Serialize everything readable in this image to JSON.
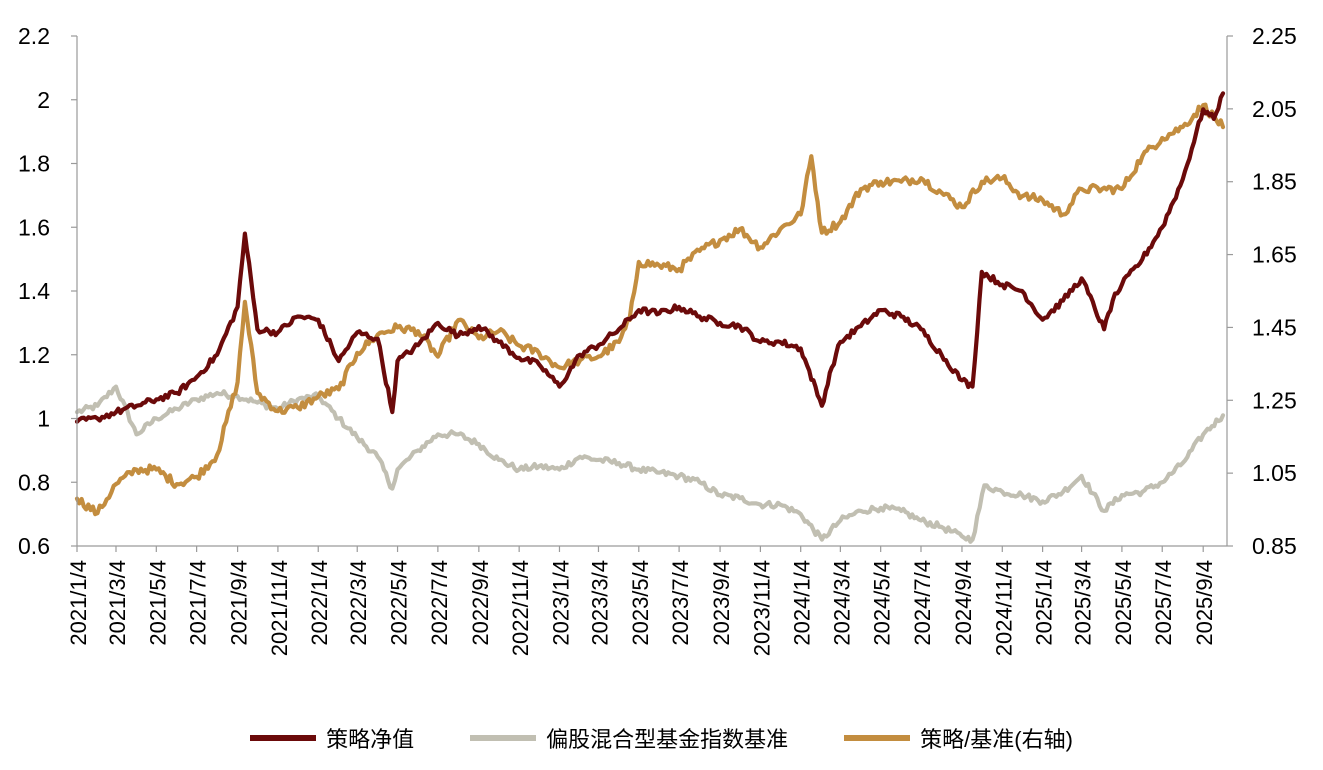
{
  "chart_data": {
    "type": "line",
    "title": "",
    "xlabel": "",
    "ylabel": "",
    "y_left": {
      "ticks": [
        "0.6",
        "0.8",
        "1",
        "1.2",
        "1.4",
        "1.6",
        "1.8",
        "2",
        "2.2"
      ],
      "lim": [
        0.6,
        2.2
      ]
    },
    "y_right": {
      "ticks": [
        "0.85",
        "1.05",
        "1.25",
        "1.45",
        "1.65",
        "1.85",
        "2.05",
        "2.25"
      ],
      "lim": [
        0.85,
        2.25
      ]
    },
    "x_ticks": [
      "2021/1/4",
      "2021/3/4",
      "2021/5/4",
      "2021/7/4",
      "2021/9/4",
      "2021/11/4",
      "2022/1/4",
      "2022/3/4",
      "2022/5/4",
      "2022/7/4",
      "2022/9/4",
      "2022/11/4",
      "2023/1/4",
      "2023/3/4",
      "2023/5/4",
      "2023/7/4",
      "2023/9/4",
      "2023/11/4",
      "2024/1/4",
      "2024/3/4",
      "2024/5/4",
      "2024/7/4",
      "2024/9/4",
      "2024/11/4",
      "2025/1/4",
      "2025/3/4",
      "2025/5/4",
      "2025/7/4",
      "2025/9/4"
    ],
    "legend_position": "bottom",
    "grid": false,
    "series": [
      {
        "name": "策略净值",
        "axis": "left",
        "color": "#6b0a0a",
        "x": [
          "2021/1/4",
          "2021/2/4",
          "2021/3/4",
          "2021/4/4",
          "2021/5/4",
          "2021/6/4",
          "2021/7/4",
          "2021/8/4",
          "2021/9/4",
          "2021/9/15",
          "2021/10/4",
          "2021/11/4",
          "2021/12/4",
          "2022/1/4",
          "2022/2/4",
          "2022/3/4",
          "2022/4/4",
          "2022/4/26",
          "2022/5/4",
          "2022/6/4",
          "2022/7/4",
          "2022/8/4",
          "2022/9/4",
          "2022/10/4",
          "2022/11/4",
          "2022/12/4",
          "2023/1/4",
          "2023/2/4",
          "2023/3/4",
          "2023/4/4",
          "2023/5/4",
          "2023/6/4",
          "2023/7/4",
          "2023/8/4",
          "2023/9/4",
          "2023/10/4",
          "2023/11/4",
          "2023/12/4",
          "2024/1/4",
          "2024/2/5",
          "2024/2/20",
          "2024/3/4",
          "2024/4/4",
          "2024/5/4",
          "2024/6/4",
          "2024/7/4",
          "2024/8/4",
          "2024/9/4",
          "2024/9/20",
          "2024/10/4",
          "2024/11/4",
          "2024/12/4",
          "2025/1/4",
          "2025/2/4",
          "2025/3/4",
          "2025/4/7",
          "2025/4/20",
          "2025/5/4",
          "2025/6/4",
          "2025/7/4",
          "2025/8/4",
          "2025/9/4",
          "2025/9/20",
          "2025/10/4"
        ],
        "values": [
          0.99,
          1.0,
          1.02,
          1.04,
          1.06,
          1.08,
          1.13,
          1.2,
          1.35,
          1.58,
          1.28,
          1.27,
          1.32,
          1.31,
          1.18,
          1.27,
          1.25,
          1.02,
          1.18,
          1.23,
          1.3,
          1.26,
          1.29,
          1.24,
          1.19,
          1.17,
          1.1,
          1.2,
          1.23,
          1.28,
          1.34,
          1.33,
          1.35,
          1.32,
          1.3,
          1.29,
          1.24,
          1.24,
          1.22,
          1.04,
          1.16,
          1.24,
          1.29,
          1.34,
          1.32,
          1.28,
          1.2,
          1.12,
          1.1,
          1.46,
          1.42,
          1.4,
          1.31,
          1.37,
          1.44,
          1.28,
          1.37,
          1.42,
          1.5,
          1.6,
          1.75,
          1.97,
          1.94,
          2.02
        ]
      },
      {
        "name": "偏股混合型基金指数基准",
        "axis": "left",
        "color": "#c1bfb2",
        "x": [
          "2021/1/4",
          "2021/2/4",
          "2021/3/4",
          "2021/4/4",
          "2021/5/4",
          "2021/6/4",
          "2021/7/4",
          "2021/8/4",
          "2021/9/4",
          "2021/10/4",
          "2021/11/4",
          "2021/12/4",
          "2022/1/4",
          "2022/2/4",
          "2022/3/4",
          "2022/4/4",
          "2022/4/26",
          "2022/5/4",
          "2022/6/4",
          "2022/7/4",
          "2022/8/4",
          "2022/9/4",
          "2022/10/4",
          "2022/11/4",
          "2022/12/4",
          "2023/1/4",
          "2023/2/4",
          "2023/3/4",
          "2023/4/4",
          "2023/5/4",
          "2023/6/4",
          "2023/7/4",
          "2023/8/4",
          "2023/9/4",
          "2023/10/4",
          "2023/11/4",
          "2023/12/4",
          "2024/1/4",
          "2024/2/5",
          "2024/3/4",
          "2024/4/4",
          "2024/5/4",
          "2024/6/4",
          "2024/7/4",
          "2024/8/4",
          "2024/9/4",
          "2024/9/20",
          "2024/10/8",
          "2024/11/4",
          "2024/12/4",
          "2025/1/4",
          "2025/2/4",
          "2025/3/4",
          "2025/4/7",
          "2025/5/4",
          "2025/6/4",
          "2025/7/4",
          "2025/8/4",
          "2025/9/4",
          "2025/10/4"
        ],
        "values": [
          1.02,
          1.04,
          1.1,
          0.95,
          1.0,
          1.03,
          1.06,
          1.08,
          1.07,
          1.05,
          1.03,
          1.06,
          1.07,
          1.0,
          0.94,
          0.88,
          0.78,
          0.84,
          0.9,
          0.95,
          0.95,
          0.92,
          0.87,
          0.84,
          0.85,
          0.84,
          0.88,
          0.87,
          0.86,
          0.84,
          0.83,
          0.82,
          0.8,
          0.76,
          0.75,
          0.73,
          0.73,
          0.7,
          0.62,
          0.68,
          0.71,
          0.72,
          0.71,
          0.68,
          0.66,
          0.63,
          0.62,
          0.79,
          0.77,
          0.76,
          0.74,
          0.77,
          0.82,
          0.71,
          0.76,
          0.77,
          0.8,
          0.86,
          0.95,
          1.01
        ]
      },
      {
        "name": "策略/基准(右轴)",
        "axis": "right",
        "color": "#c38d3f",
        "x": [
          "2021/1/4",
          "2021/2/4",
          "2021/3/4",
          "2021/4/4",
          "2021/5/4",
          "2021/6/4",
          "2021/7/4",
          "2021/8/4",
          "2021/9/4",
          "2021/9/15",
          "2021/10/4",
          "2021/11/4",
          "2021/12/4",
          "2022/1/4",
          "2022/2/4",
          "2022/3/4",
          "2022/4/4",
          "2022/5/4",
          "2022/6/4",
          "2022/7/4",
          "2022/8/4",
          "2022/9/4",
          "2022/10/4",
          "2022/11/4",
          "2022/12/4",
          "2023/1/4",
          "2023/2/4",
          "2023/3/4",
          "2023/4/4",
          "2023/4/20",
          "2023/5/4",
          "2023/6/4",
          "2023/7/4",
          "2023/8/4",
          "2023/9/4",
          "2023/10/4",
          "2023/11/4",
          "2023/12/4",
          "2024/1/4",
          "2024/1/20",
          "2024/2/5",
          "2024/3/4",
          "2024/4/4",
          "2024/5/4",
          "2024/6/4",
          "2024/7/4",
          "2024/8/4",
          "2024/9/4",
          "2024/10/4",
          "2024/11/4",
          "2024/12/4",
          "2025/1/4",
          "2025/2/4",
          "2025/3/4",
          "2025/4/4",
          "2025/5/4",
          "2025/6/4",
          "2025/7/4",
          "2025/8/4",
          "2025/9/4",
          "2025/10/4"
        ],
        "values": [
          0.98,
          0.94,
          1.02,
          1.06,
          1.06,
          1.02,
          1.04,
          1.1,
          1.3,
          1.52,
          1.27,
          1.22,
          1.23,
          1.26,
          1.28,
          1.38,
          1.43,
          1.45,
          1.44,
          1.37,
          1.47,
          1.42,
          1.44,
          1.4,
          1.38,
          1.34,
          1.36,
          1.37,
          1.41,
          1.47,
          1.63,
          1.62,
          1.61,
          1.66,
          1.69,
          1.72,
          1.67,
          1.72,
          1.76,
          1.92,
          1.71,
          1.74,
          1.83,
          1.85,
          1.85,
          1.86,
          1.82,
          1.78,
          1.85,
          1.86,
          1.81,
          1.8,
          1.76,
          1.83,
          1.83,
          1.83,
          1.92,
          1.97,
          2.0,
          2.06,
          2.0
        ]
      }
    ]
  }
}
